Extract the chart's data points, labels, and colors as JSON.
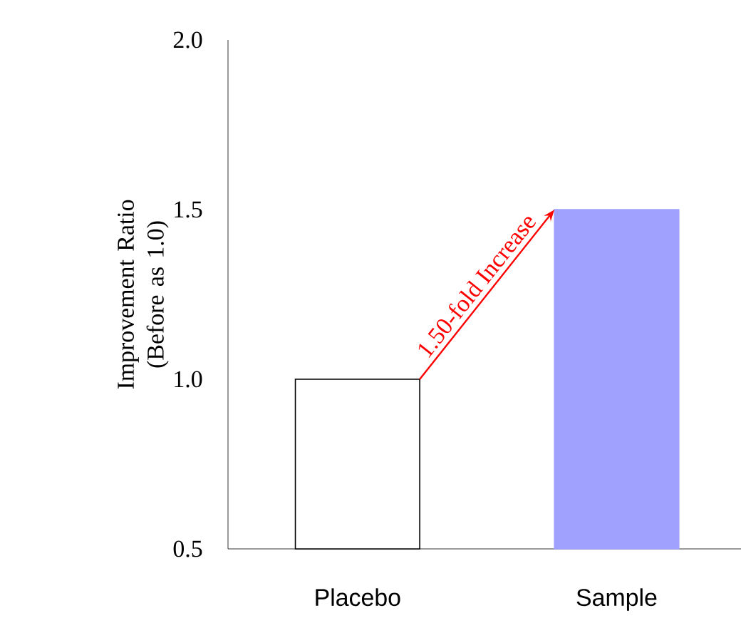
{
  "chart_data": {
    "type": "bar",
    "ylabel": "Improvement Ratio (Before as 1.0)",
    "categories": [
      "Placebo",
      "Sample"
    ],
    "values": [
      1.0,
      1.5
    ],
    "colors": [
      "#ffffff",
      "#a0a0ff"
    ],
    "ylim": [
      0.5,
      2.0
    ],
    "yticks": [
      0.5,
      {
        "value": 1.0,
        "label": "1.0"
      },
      1.5,
      {
        "value": 2.0,
        "label": "2.0"
      }
    ],
    "annotations": [
      "1.50-fold Increase"
    ]
  }
}
